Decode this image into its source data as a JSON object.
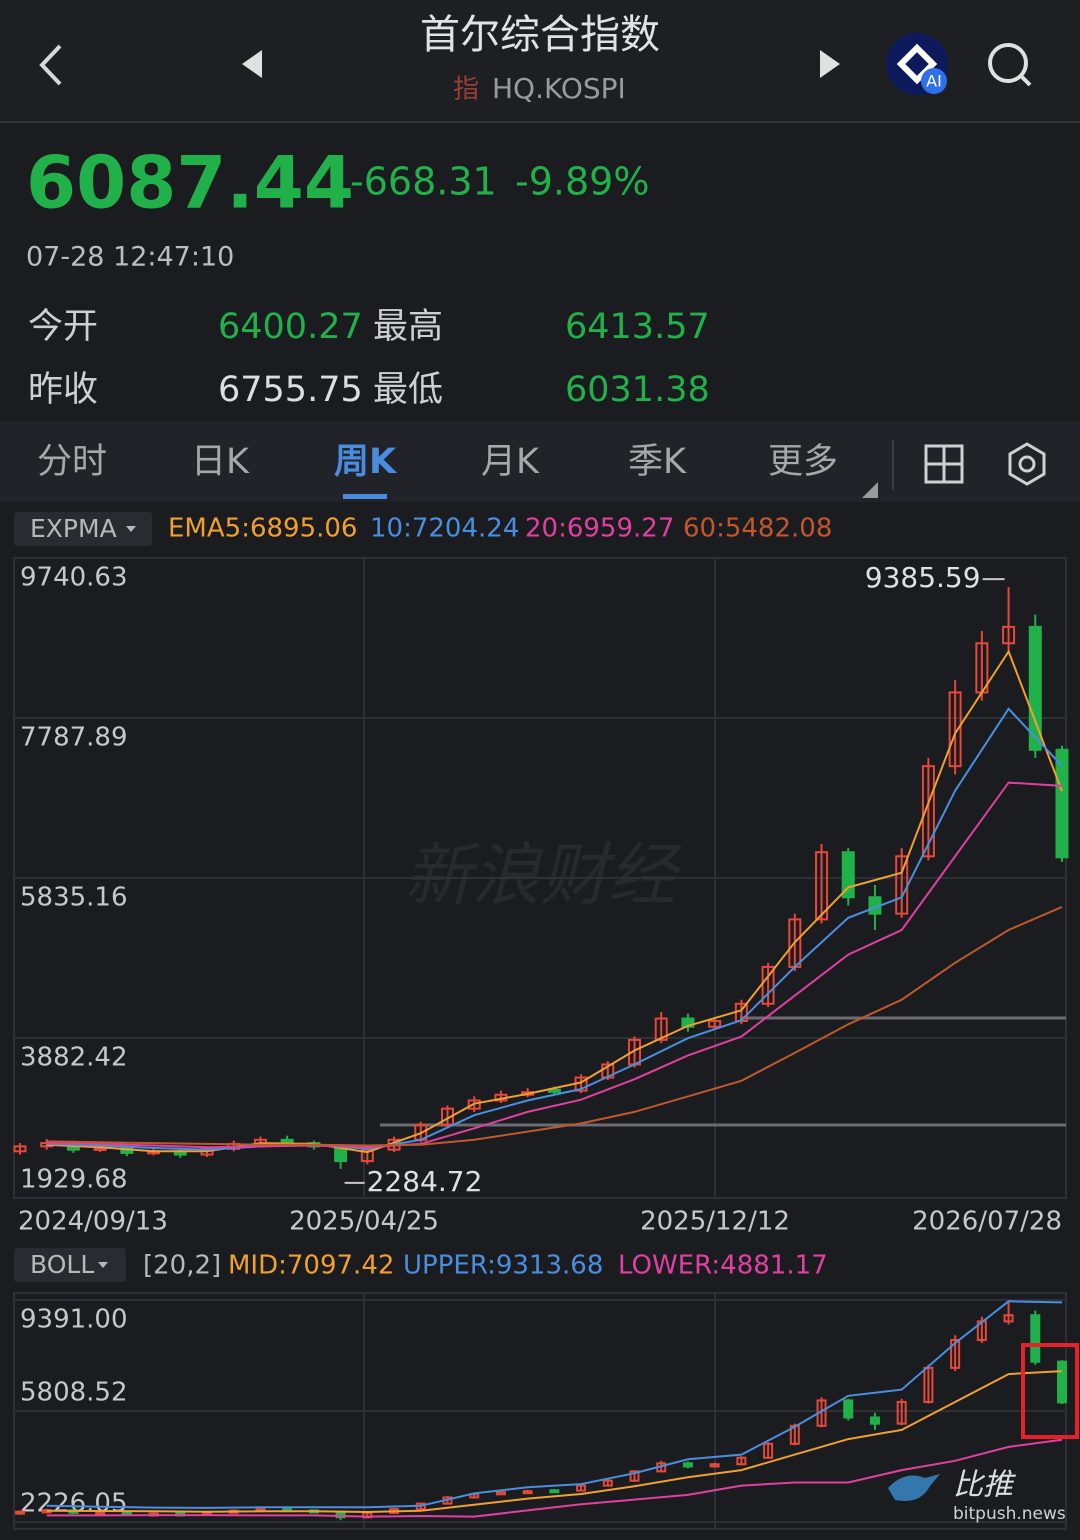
{
  "header": {
    "title": "首尔综合指数",
    "badge": "指",
    "code": "HQ.KOSPI"
  },
  "quote": {
    "price": "6087.44",
    "change": "-668.31",
    "change_pct": "-9.89%",
    "time": "07-28 12:47:10",
    "stats": [
      [
        "今开",
        "6400.27",
        "最高",
        "6413.57"
      ],
      [
        "昨收",
        "6755.75",
        "最低",
        "6031.38"
      ]
    ]
  },
  "tabs": {
    "items": [
      "分时",
      "日K",
      "周K",
      "月K",
      "季K",
      "更多"
    ],
    "active": 2
  },
  "watermarks": [
    "新浪财经",
    "比推",
    "bitpush.news"
  ],
  "chart_data": [
    {
      "type": "candlestick",
      "indicator": "EXPMA",
      "up_color": "#e5493a",
      "down_color": "#21b14a",
      "grid": true,
      "candles": {
        "open": [
          2500,
          2560,
          2600,
          2520,
          2540,
          2480,
          2500,
          2460,
          2530,
          2590,
          2640,
          2600,
          2560,
          2380,
          2520,
          2640,
          2820,
          3020,
          3120,
          3190,
          3250,
          3240,
          3400,
          3560,
          3860,
          4120,
          4020,
          4090,
          4300,
          4750,
          5330,
          6150,
          5600,
          5400,
          6100,
          7200,
          8100,
          8700,
          8900,
          7400
        ],
        "high": [
          2600,
          2650,
          2630,
          2580,
          2570,
          2540,
          2530,
          2560,
          2630,
          2680,
          2690,
          2630,
          2590,
          2560,
          2680,
          2860,
          3060,
          3170,
          3240,
          3270,
          3290,
          3440,
          3600,
          3900,
          4200,
          4180,
          4140,
          4350,
          4800,
          5400,
          6250,
          6200,
          5750,
          6200,
          7300,
          8250,
          8850,
          9385.59,
          9050,
          7450
        ],
        "low": [
          2460,
          2520,
          2480,
          2490,
          2440,
          2450,
          2420,
          2430,
          2500,
          2560,
          2570,
          2520,
          2284.72,
          2340,
          2490,
          2610,
          2790,
          2980,
          3090,
          3160,
          3190,
          3210,
          3370,
          3520,
          3820,
          3960,
          3980,
          4050,
          4260,
          4700,
          5280,
          5500,
          5200,
          5350,
          6050,
          7100,
          8000,
          8600,
          7300,
          6031.38
        ],
        "close": [
          2560,
          2600,
          2520,
          2540,
          2480,
          2500,
          2460,
          2530,
          2590,
          2640,
          2600,
          2560,
          2380,
          2520,
          2640,
          2820,
          3020,
          3120,
          3190,
          3220,
          3240,
          3400,
          3560,
          3860,
          4120,
          4020,
          4090,
          4300,
          4750,
          5330,
          6150,
          5600,
          5400,
          6100,
          7200,
          8100,
          8700,
          8900,
          7400,
          6087.44
        ]
      },
      "series": [
        {
          "name": "EMA5:6895.06",
          "color": "#f0a030",
          "values": [
            2580,
            2550,
            2500,
            2500,
            2600,
            2590,
            2490,
            2720,
            3080,
            3200,
            3340,
            3730,
            4030,
            4220,
            5050,
            5720,
            5900,
            7600,
            8600,
            6895.06
          ]
        },
        {
          "name": "10:7204.24",
          "color": "#4a8ee0",
          "values": [
            2590,
            2570,
            2540,
            2520,
            2560,
            2580,
            2530,
            2640,
            2940,
            3120,
            3260,
            3560,
            3880,
            4100,
            4750,
            5350,
            5600,
            6900,
            7900,
            7204.24
          ]
        },
        {
          "name": "20:6959.27",
          "color": "#e040a0",
          "values": [
            2600,
            2590,
            2570,
            2550,
            2560,
            2570,
            2550,
            2590,
            2780,
            2980,
            3130,
            3380,
            3670,
            3900,
            4400,
            4900,
            5200,
            6100,
            7000,
            6959.27
          ]
        },
        {
          "name": "60:5482.08",
          "color": "#c0582e",
          "values": [
            2620,
            2610,
            2600,
            2590,
            2580,
            2580,
            2570,
            2580,
            2640,
            2740,
            2840,
            2980,
            3170,
            3360,
            3700,
            4050,
            4350,
            4800,
            5200,
            5482.08
          ]
        }
      ],
      "ylim": [
        1929.68,
        9740.63
      ],
      "yticks": [
        9740.63,
        7787.89,
        5835.16,
        3882.42,
        1929.68
      ],
      "xticks": [
        "2024/09/13",
        "2025/04/25",
        "2025/12/12",
        "2026/07/28"
      ]
    },
    {
      "type": "candlestick",
      "indicator": "BOLL",
      "params": "[20,2]",
      "grid": true,
      "series": [
        {
          "name": "MID:7097.42",
          "color": "#f0a030",
          "values": [
            2590,
            2580,
            2570,
            2560,
            2570,
            2570,
            2550,
            2590,
            2780,
            2980,
            3130,
            3380,
            3670,
            3900,
            4400,
            4900,
            5200,
            6100,
            7000,
            7097.42
          ]
        },
        {
          "name": "UPPER:9313.68",
          "color": "#4a8ee0",
          "values": [
            2750,
            2720,
            2690,
            2680,
            2700,
            2700,
            2700,
            2750,
            3150,
            3350,
            3450,
            3800,
            4250,
            4400,
            5300,
            6300,
            6500,
            8000,
            9350,
            9313.68
          ]
        },
        {
          "name": "LOWER:4881.17",
          "color": "#e040a0",
          "values": [
            2440,
            2440,
            2450,
            2450,
            2440,
            2440,
            2400,
            2420,
            2400,
            2600,
            2800,
            2950,
            3100,
            3400,
            3500,
            3500,
            3900,
            4200,
            4650,
            4881.17
          ]
        }
      ],
      "ylim": [
        2226.05,
        9391
      ],
      "yticks": [
        {
          "value": 9391,
          "label": "9391.00"
        },
        5808.52,
        2226.05
      ]
    }
  ]
}
